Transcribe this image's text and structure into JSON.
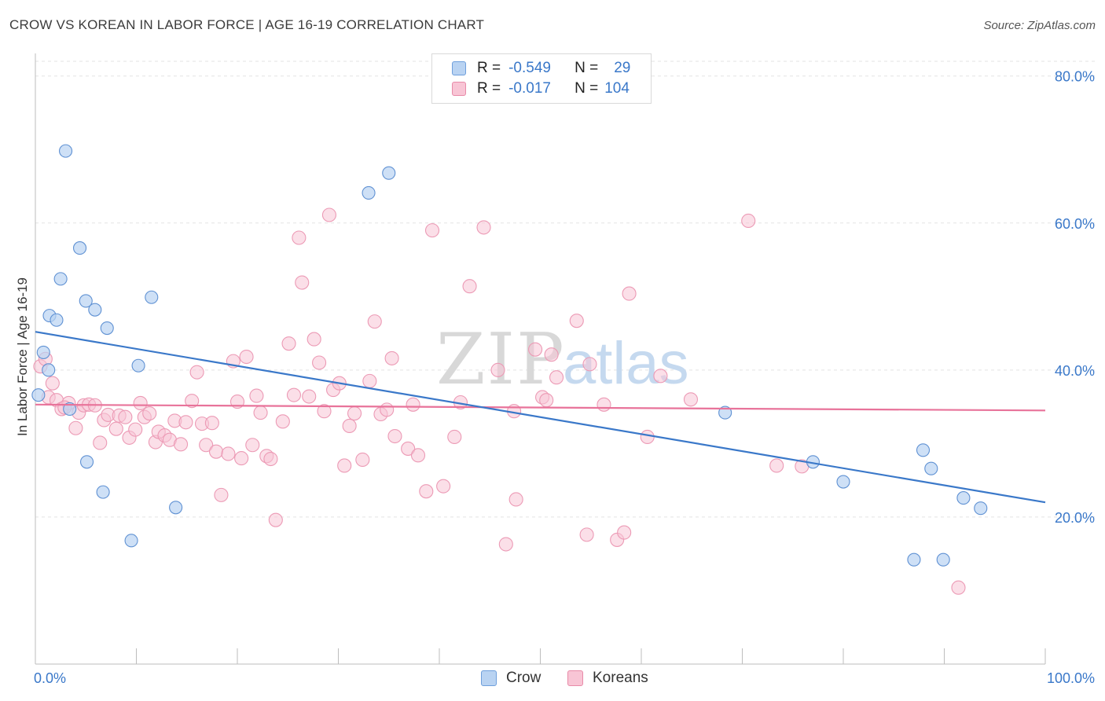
{
  "title": "CROW VS KOREAN IN LABOR FORCE | AGE 16-19 CORRELATION CHART",
  "source": "Source: ZipAtlas.com",
  "watermark": {
    "zip": "ZIP",
    "atlas": "atlas"
  },
  "legend": {
    "r_label": "R =",
    "n_label": "N =",
    "crow": {
      "r": "-0.549",
      "n": "29"
    },
    "koreans": {
      "r": "-0.017",
      "n": "104"
    }
  },
  "bottom_legend": {
    "crow": "Crow",
    "koreans": "Koreans"
  },
  "colors": {
    "crow": "#3a78c9",
    "koreans": "#e8739a",
    "crow_fill": "#b9d3f2",
    "koreans_fill": "#f8c5d5"
  },
  "chart_data": {
    "type": "scatter",
    "title": "CROW VS KOREAN IN LABOR FORCE | AGE 16-19 CORRELATION CHART",
    "xlabel": "",
    "ylabel": "In Labor Force | Age 16-19",
    "xlim": [
      0,
      100
    ],
    "ylim": [
      0,
      82
    ],
    "x_tick_labels": [
      "0.0%",
      "100.0%"
    ],
    "y_ticks": [
      20,
      40,
      60,
      80
    ],
    "y_tick_labels": [
      "20.0%",
      "40.0%",
      "60.0%",
      "80.0%"
    ],
    "series": [
      {
        "name": "Crow",
        "r": -0.549,
        "n": 29,
        "trend": {
          "x": [
            0,
            100
          ],
          "y": [
            45.2,
            22.0
          ]
        },
        "points": [
          [
            0.3,
            36.6
          ],
          [
            0.8,
            42.4
          ],
          [
            1.3,
            40.0
          ],
          [
            1.4,
            47.4
          ],
          [
            2.1,
            46.8
          ],
          [
            2.5,
            52.4
          ],
          [
            3.0,
            69.8
          ],
          [
            3.4,
            34.7
          ],
          [
            4.4,
            56.6
          ],
          [
            5.0,
            49.4
          ],
          [
            5.1,
            27.5
          ],
          [
            5.9,
            48.2
          ],
          [
            6.7,
            23.4
          ],
          [
            7.1,
            45.7
          ],
          [
            9.5,
            16.8
          ],
          [
            10.2,
            40.6
          ],
          [
            11.5,
            49.9
          ],
          [
            13.9,
            21.3
          ],
          [
            33.0,
            64.1
          ],
          [
            35.0,
            66.8
          ],
          [
            68.3,
            34.2
          ],
          [
            77.0,
            27.5
          ],
          [
            80.0,
            24.8
          ],
          [
            87.0,
            14.2
          ],
          [
            87.9,
            29.1
          ],
          [
            88.7,
            26.6
          ],
          [
            89.9,
            14.2
          ],
          [
            91.9,
            22.6
          ],
          [
            93.6,
            21.2
          ]
        ]
      },
      {
        "name": "Koreans",
        "r": -0.017,
        "n": 104,
        "trend": {
          "x": [
            0,
            100
          ],
          "y": [
            35.3,
            34.5
          ]
        },
        "points": [
          [
            0.5,
            40.5
          ],
          [
            1.3,
            36.3
          ],
          [
            1.7,
            38.2
          ],
          [
            2.1,
            35.9
          ],
          [
            2.6,
            34.7
          ],
          [
            3.3,
            35.5
          ],
          [
            4.0,
            32.1
          ],
          [
            4.3,
            34.2
          ],
          [
            4.8,
            35.2
          ],
          [
            5.3,
            35.3
          ],
          [
            5.9,
            35.2
          ],
          [
            6.4,
            30.1
          ],
          [
            6.8,
            33.2
          ],
          [
            7.2,
            33.9
          ],
          [
            8.0,
            32.0
          ],
          [
            8.3,
            33.8
          ],
          [
            8.9,
            33.6
          ],
          [
            9.3,
            30.8
          ],
          [
            9.9,
            31.9
          ],
          [
            10.4,
            35.5
          ],
          [
            10.8,
            33.6
          ],
          [
            11.3,
            34.1
          ],
          [
            11.9,
            30.2
          ],
          [
            12.2,
            31.6
          ],
          [
            12.8,
            31.1
          ],
          [
            13.3,
            30.5
          ],
          [
            13.8,
            33.1
          ],
          [
            14.4,
            29.9
          ],
          [
            14.9,
            32.9
          ],
          [
            15.5,
            35.8
          ],
          [
            16.0,
            39.7
          ],
          [
            16.5,
            32.7
          ],
          [
            16.9,
            29.8
          ],
          [
            17.5,
            32.8
          ],
          [
            17.9,
            28.9
          ],
          [
            18.4,
            23.0
          ],
          [
            19.1,
            28.6
          ],
          [
            19.6,
            41.2
          ],
          [
            20.0,
            35.7
          ],
          [
            20.4,
            28.0
          ],
          [
            20.9,
            41.8
          ],
          [
            21.5,
            29.8
          ],
          [
            21.9,
            36.5
          ],
          [
            22.3,
            34.2
          ],
          [
            22.9,
            28.3
          ],
          [
            23.3,
            27.9
          ],
          [
            23.8,
            19.6
          ],
          [
            24.5,
            33.0
          ],
          [
            25.1,
            43.6
          ],
          [
            25.6,
            36.6
          ],
          [
            26.1,
            58.0
          ],
          [
            26.4,
            51.9
          ],
          [
            27.1,
            36.4
          ],
          [
            27.6,
            44.2
          ],
          [
            28.1,
            41.0
          ],
          [
            28.6,
            34.4
          ],
          [
            29.1,
            61.1
          ],
          [
            29.5,
            37.3
          ],
          [
            30.1,
            38.2
          ],
          [
            30.6,
            27.0
          ],
          [
            31.1,
            32.4
          ],
          [
            31.6,
            34.1
          ],
          [
            32.4,
            27.8
          ],
          [
            33.1,
            38.5
          ],
          [
            33.6,
            46.6
          ],
          [
            34.2,
            34.0
          ],
          [
            34.8,
            34.6
          ],
          [
            35.3,
            41.6
          ],
          [
            35.6,
            31.0
          ],
          [
            36.9,
            29.3
          ],
          [
            37.4,
            35.3
          ],
          [
            37.9,
            28.4
          ],
          [
            38.7,
            23.5
          ],
          [
            39.3,
            59.0
          ],
          [
            40.4,
            24.2
          ],
          [
            41.5,
            30.9
          ],
          [
            42.1,
            35.6
          ],
          [
            43.0,
            51.4
          ],
          [
            44.4,
            59.4
          ],
          [
            45.8,
            40.0
          ],
          [
            46.6,
            16.3
          ],
          [
            47.4,
            34.4
          ],
          [
            47.6,
            22.4
          ],
          [
            49.5,
            42.8
          ],
          [
            50.2,
            36.3
          ],
          [
            50.6,
            35.9
          ],
          [
            51.1,
            42.1
          ],
          [
            51.6,
            39.0
          ],
          [
            53.6,
            46.7
          ],
          [
            54.6,
            17.6
          ],
          [
            54.9,
            40.8
          ],
          [
            56.3,
            35.3
          ],
          [
            57.6,
            16.9
          ],
          [
            58.3,
            17.9
          ],
          [
            58.8,
            50.4
          ],
          [
            60.6,
            30.9
          ],
          [
            61.9,
            39.2
          ],
          [
            64.9,
            36.0
          ],
          [
            70.6,
            60.3
          ],
          [
            73.4,
            27.0
          ],
          [
            75.9,
            26.9
          ],
          [
            91.4,
            10.4
          ],
          [
            1.0,
            41.5
          ],
          [
            2.9,
            34.9
          ]
        ]
      }
    ]
  }
}
